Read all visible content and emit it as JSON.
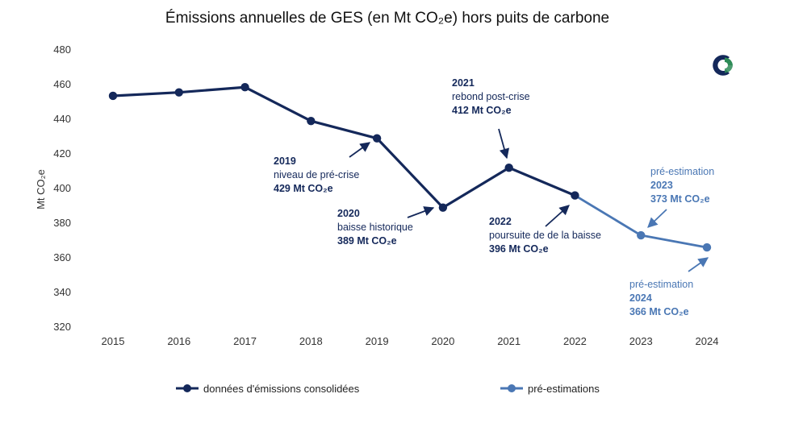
{
  "chart_data": {
    "type": "line",
    "title": "Émissions annuelles de GES (en Mt CO₂e) hors puits de carbone",
    "ylabel": "Mt CO₂e",
    "xlabel": "",
    "ylim": [
      320,
      480
    ],
    "y_ticks": [
      "320",
      "340",
      "360",
      "380",
      "400",
      "420",
      "440",
      "460",
      "480"
    ],
    "x": [
      "2015",
      "2016",
      "2017",
      "2018",
      "2019",
      "2020",
      "2021",
      "2022",
      "2023",
      "2024"
    ],
    "grid": false,
    "legend_position": "bottom",
    "series": [
      {
        "name": "données d'émissions consolidées",
        "color": "#14285a",
        "points": [
          {
            "x": "2015",
            "y": 453.5
          },
          {
            "x": "2016",
            "y": 455.5
          },
          {
            "x": "2017",
            "y": 458.5
          },
          {
            "x": "2018",
            "y": 439
          },
          {
            "x": "2019",
            "y": 429
          },
          {
            "x": "2020",
            "y": 389
          },
          {
            "x": "2021",
            "y": 412
          },
          {
            "x": "2022",
            "y": 396
          }
        ]
      },
      {
        "name": "pré-estimations",
        "color": "#4a77b4",
        "points": [
          {
            "x": "2022",
            "y": 396
          },
          {
            "x": "2023",
            "y": 373
          },
          {
            "x": "2024",
            "y": 366
          }
        ]
      }
    ],
    "annotations": [
      {
        "year": "2019",
        "desc": "niveau de pré-crise",
        "value": "429 Mt CO₂e",
        "color": "#14285a"
      },
      {
        "year": "2020",
        "desc": "baisse historique",
        "value": "389 Mt CO₂e",
        "color": "#14285a"
      },
      {
        "year": "2021",
        "desc": "rebond post-crise",
        "value": "412 Mt CO₂e",
        "color": "#14285a"
      },
      {
        "year": "2022",
        "desc": "poursuite de de la baisse",
        "value": "396 Mt CO₂e",
        "color": "#14285a"
      },
      {
        "pre": "pré-estimation",
        "year": "2023",
        "value": "373 Mt CO₂e",
        "color": "#4a77b4"
      },
      {
        "pre": "pré-estimation",
        "year": "2024",
        "value": "366 Mt CO₂e",
        "color": "#4a77b4"
      }
    ],
    "logo": {
      "name": "brand-logo-icon",
      "colors": [
        "#14285a",
        "#2e8b57"
      ]
    }
  }
}
